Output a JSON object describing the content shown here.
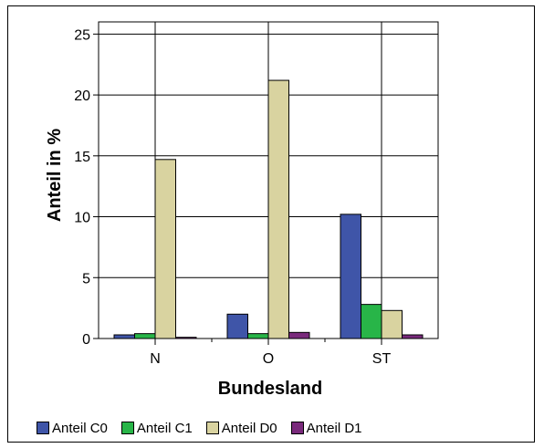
{
  "chart_data": {
    "type": "bar",
    "title": "",
    "xlabel": "Bundesland",
    "ylabel": "Anteil in %",
    "categories": [
      "N",
      "O",
      "ST"
    ],
    "ylim": [
      0,
      26
    ],
    "yticks": [
      "0",
      "5",
      "10",
      "15",
      "20",
      "25"
    ],
    "grid": true,
    "legend_position": "bottom",
    "series": [
      {
        "name": "Anteil C0",
        "color": "#3f55a8",
        "values": [
          0.3,
          2.0,
          10.2
        ]
      },
      {
        "name": "Anteil C1",
        "color": "#28b548",
        "values": [
          0.4,
          0.4,
          2.8
        ]
      },
      {
        "name": "Anteil D0",
        "color": "#d9d3a0",
        "values": [
          14.7,
          21.2,
          2.3
        ]
      },
      {
        "name": "Anteil D1",
        "color": "#7a2a7c",
        "values": [
          0.1,
          0.5,
          0.3
        ]
      }
    ]
  }
}
